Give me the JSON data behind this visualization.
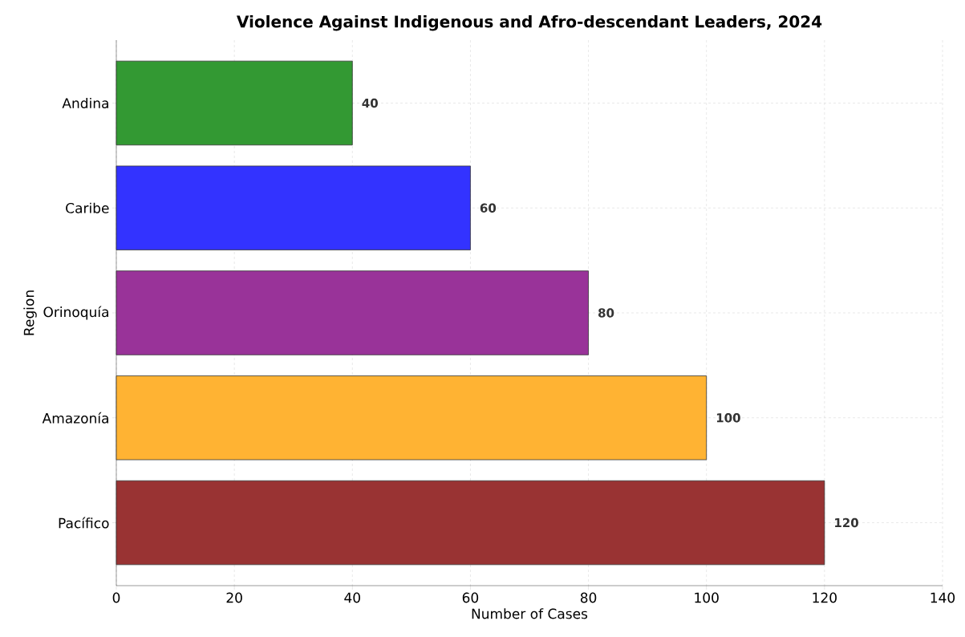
{
  "chart_data": {
    "type": "bar",
    "orientation": "horizontal",
    "title": "Violence Against Indigenous and Afro-descendant Leaders, 2024",
    "xlabel": "Number of Cases",
    "ylabel": "Region",
    "categories": [
      "Andina",
      "Caribe",
      "Orinoquía",
      "Amazonía",
      "Pacífico"
    ],
    "values": [
      40,
      60,
      80,
      100,
      120
    ],
    "colors": [
      "#339933",
      "#3333ff",
      "#993399",
      "#ffb333",
      "#993333"
    ],
    "xlim": [
      0,
      140
    ],
    "xticks": [
      0,
      20,
      40,
      60,
      80,
      100,
      120,
      140
    ],
    "grid": true,
    "data_labels": true
  }
}
